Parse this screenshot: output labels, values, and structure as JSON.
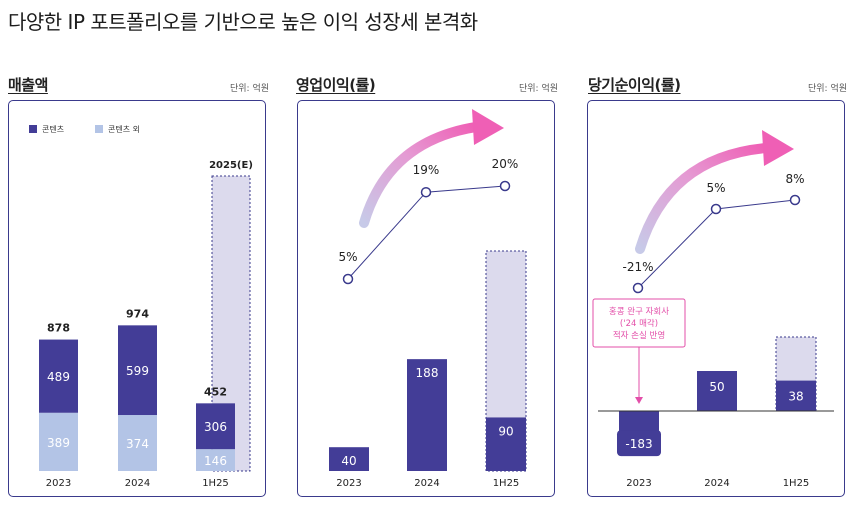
{
  "headline": "다양한 IP 포트폴리오를 기반으로 높은 이익 성장세 본격화",
  "unit_label": "단위: 억원",
  "colors": {
    "content": "#433d97",
    "non_content": "#b3c4e6",
    "forecast": "#dcdaed",
    "margin_line": "#3a3a8c",
    "arrow_start": "#c7cae8",
    "arrow_end": "#ef5fb5",
    "annotation": "#e34fa9",
    "frame": "#3a3a8c"
  },
  "chart_data": [
    {
      "id": "revenue",
      "type": "bar",
      "stacked": true,
      "title": "매출액",
      "unit": "단위: 억원",
      "categories": [
        "2023",
        "2024",
        "1H25"
      ],
      "series": [
        {
          "name": "콘텐츠",
          "values": [
            489,
            599,
            306
          ]
        },
        {
          "name": "콘텐츠 외",
          "values": [
            389,
            374,
            146
          ]
        }
      ],
      "totals": [
        878,
        974,
        452
      ],
      "forecast": {
        "label": "2025(E)",
        "category": "1H25"
      },
      "legend": [
        "콘텐츠",
        "콘텐츠 외"
      ],
      "legend_position": "top-left"
    },
    {
      "id": "operating",
      "type": "bar+line",
      "title": "영업이익(률)",
      "unit": "단위: 억원",
      "categories": [
        "2023",
        "2024",
        "1H25"
      ],
      "values": [
        40,
        188,
        90
      ],
      "margins": [
        5,
        19,
        20
      ],
      "margin_labels": [
        "5%",
        "19%",
        "20%"
      ],
      "forecast_category": "1H25"
    },
    {
      "id": "net",
      "type": "bar+line",
      "title": "당기순이익(률)",
      "unit": "단위: 억원",
      "categories": [
        "2023",
        "2024",
        "1H25"
      ],
      "values": [
        -183,
        50,
        38
      ],
      "value_labels": [
        "-183",
        "50",
        "38"
      ],
      "margins": [
        -21,
        5,
        8
      ],
      "margin_labels": [
        "-21%",
        "5%",
        "8%"
      ],
      "forecast_category": "1H25",
      "annotation": [
        "홍콩 완구 자회사",
        "('24 매각)",
        "적자 손실 반영"
      ]
    }
  ]
}
